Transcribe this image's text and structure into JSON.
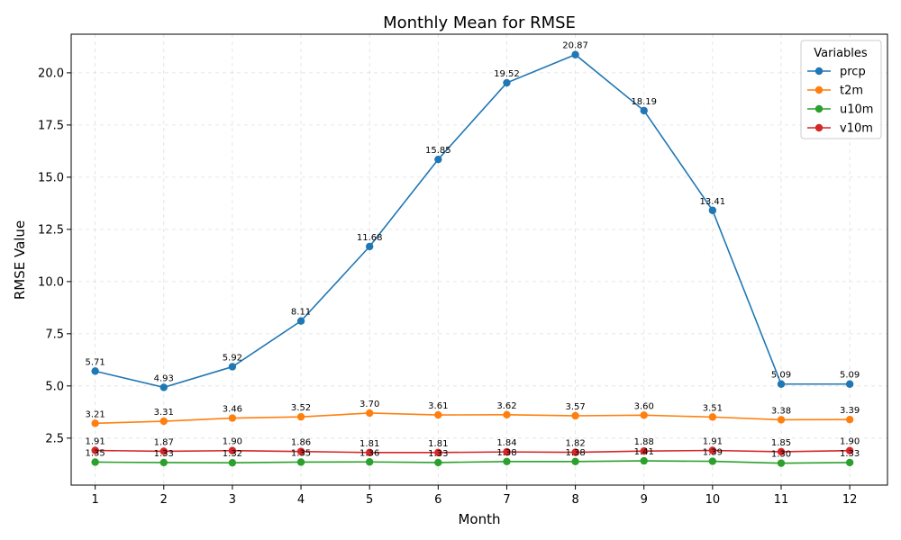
{
  "chart_data": {
    "type": "line",
    "title": "Monthly Mean for RMSE",
    "xlabel": "Month",
    "ylabel": "RMSE Value",
    "x": [
      1,
      2,
      3,
      4,
      5,
      6,
      7,
      8,
      9,
      10,
      11,
      12
    ],
    "xlim": [
      0.65,
      12.55
    ],
    "ylim": [
      0.25,
      21.85
    ],
    "yticks": [
      2.5,
      5.0,
      7.5,
      10.0,
      12.5,
      15.0,
      17.5,
      20.0
    ],
    "grid": true,
    "legend": {
      "title": "Variables",
      "placement": "top-right"
    },
    "series": [
      {
        "name": "prcp",
        "color": "#1f77b4",
        "values": [
          5.71,
          4.93,
          5.92,
          8.11,
          11.68,
          15.85,
          19.52,
          20.87,
          18.19,
          13.41,
          5.09,
          5.09
        ]
      },
      {
        "name": "t2m",
        "color": "#ff7f0e",
        "values": [
          3.21,
          3.31,
          3.46,
          3.52,
          3.7,
          3.61,
          3.62,
          3.57,
          3.6,
          3.51,
          3.38,
          3.39
        ]
      },
      {
        "name": "u10m",
        "color": "#2ca02c",
        "values": [
          1.35,
          1.33,
          1.32,
          1.35,
          1.36,
          1.33,
          1.38,
          1.38,
          1.41,
          1.39,
          1.3,
          1.33
        ]
      },
      {
        "name": "v10m",
        "color": "#d62728",
        "values": [
          1.91,
          1.87,
          1.9,
          1.86,
          1.81,
          1.81,
          1.84,
          1.82,
          1.88,
          1.91,
          1.85,
          1.9
        ]
      }
    ]
  }
}
